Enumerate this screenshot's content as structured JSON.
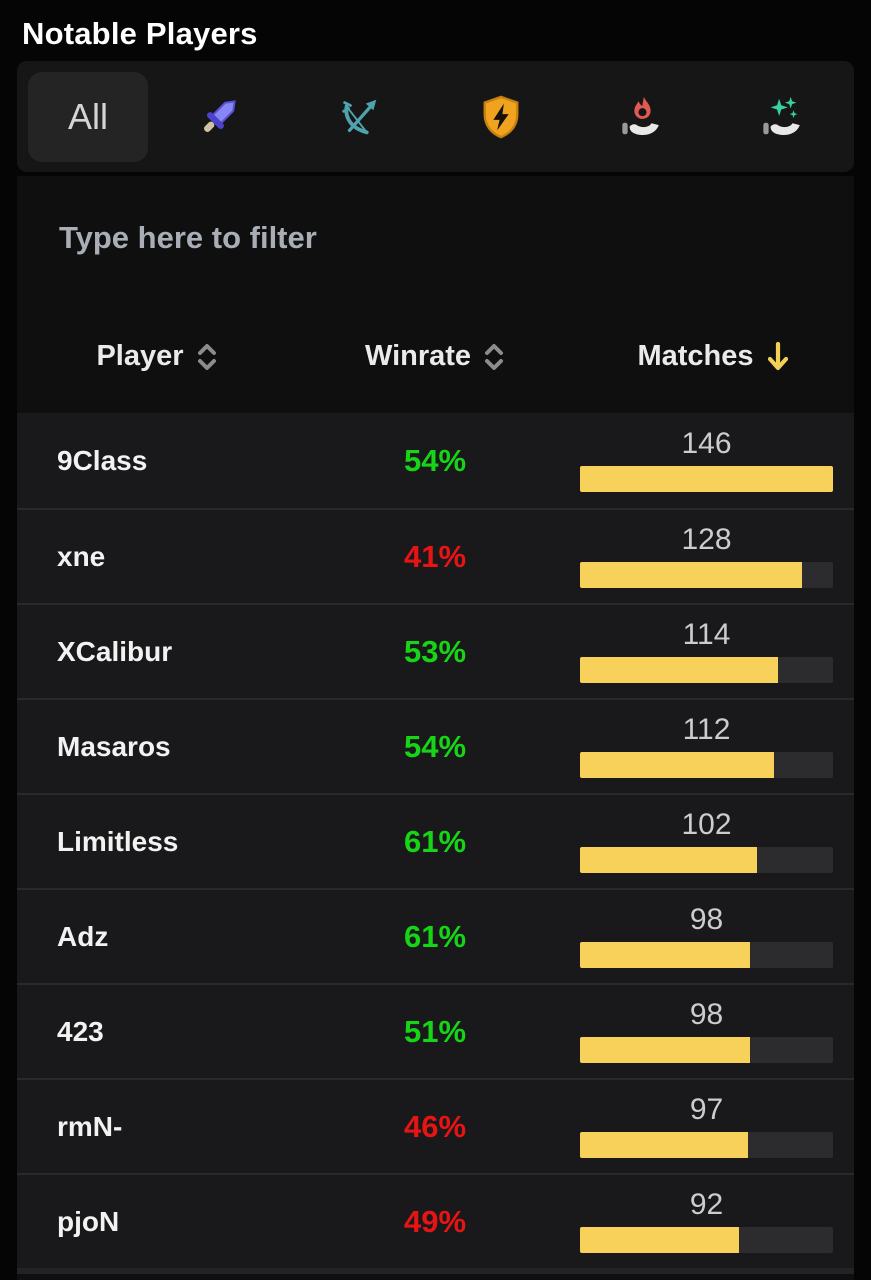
{
  "header": {
    "title": "Notable Players"
  },
  "tabs": {
    "items": [
      {
        "name": "all",
        "label": "All",
        "selected": true
      },
      {
        "name": "melee",
        "icon": "sword-icon",
        "selected": false
      },
      {
        "name": "ranged",
        "icon": "bow-icon",
        "selected": false
      },
      {
        "name": "tank",
        "icon": "shield-icon",
        "selected": false
      },
      {
        "name": "fire-damage",
        "icon": "fire-hand-icon",
        "selected": false
      },
      {
        "name": "support",
        "icon": "sparkle-hand-icon",
        "selected": false
      }
    ]
  },
  "filter": {
    "placeholder": "Type here to filter",
    "value": ""
  },
  "table": {
    "columns": [
      {
        "label": "Player",
        "sort": "sortable"
      },
      {
        "label": "Winrate",
        "sort": "sortable"
      },
      {
        "label": "Matches",
        "sort": "desc"
      }
    ],
    "max_matches": 146,
    "rows": [
      {
        "player": "9Class",
        "winrate": "54%",
        "winrate_color": "green",
        "matches": 146
      },
      {
        "player": "xne",
        "winrate": "41%",
        "winrate_color": "red",
        "matches": 128
      },
      {
        "player": "XCalibur",
        "winrate": "53%",
        "winrate_color": "green",
        "matches": 114
      },
      {
        "player": "Masaros",
        "winrate": "54%",
        "winrate_color": "green",
        "matches": 112
      },
      {
        "player": "Limitless",
        "winrate": "61%",
        "winrate_color": "green",
        "matches": 102
      },
      {
        "player": "Adz",
        "winrate": "61%",
        "winrate_color": "green",
        "matches": 98
      },
      {
        "player": "423",
        "winrate": "51%",
        "winrate_color": "green",
        "matches": 98
      },
      {
        "player": "rmN-",
        "winrate": "46%",
        "winrate_color": "red",
        "matches": 97
      },
      {
        "player": "pjoN",
        "winrate": "49%",
        "winrate_color": "red",
        "matches": 92
      }
    ]
  },
  "colors": {
    "positive_winrate": "#17d417",
    "negative_winrate": "#e81414",
    "bar_fill": "#f7d159",
    "bar_track": "#2c2c2e",
    "sort_active_arrow": "#f2cf55",
    "sort_inactive": "#8c8c8c"
  }
}
